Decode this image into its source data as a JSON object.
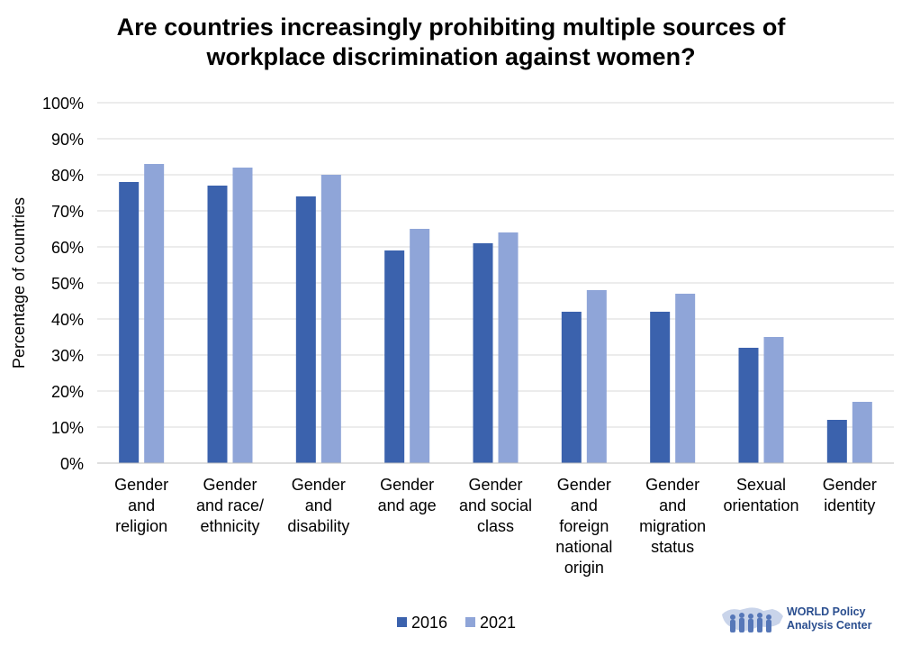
{
  "chart_data": {
    "type": "bar",
    "title": [
      "Are countries increasingly prohibiting multiple sources of",
      "workplace discrimination against women?"
    ],
    "ylabel": "Percentage of countries",
    "ylim": [
      0,
      100
    ],
    "yticks": [
      "0%",
      "10%",
      "20%",
      "30%",
      "40%",
      "50%",
      "60%",
      "70%",
      "80%",
      "90%",
      "100%"
    ],
    "grid": true,
    "legend_position": "bottom",
    "categories": [
      [
        "Gender",
        "and",
        "religion"
      ],
      [
        "Gender",
        "and race/",
        "ethnicity"
      ],
      [
        "Gender",
        "and",
        "disability"
      ],
      [
        "Gender",
        "and age"
      ],
      [
        "Gender",
        "and social",
        "class"
      ],
      [
        "Gender",
        "and",
        "foreign",
        "national",
        "origin"
      ],
      [
        "Gender",
        "and",
        "migration",
        "status"
      ],
      [
        "Sexual",
        "orientation"
      ],
      [
        "Gender",
        "identity"
      ]
    ],
    "series": [
      {
        "name": "2016",
        "color": "#3b62ad",
        "values": [
          78,
          77,
          74,
          59,
          61,
          42,
          42,
          32,
          12
        ]
      },
      {
        "name": "2021",
        "color": "#8fa5d8",
        "values": [
          83,
          82,
          80,
          65,
          64,
          48,
          47,
          35,
          17
        ]
      }
    ]
  },
  "logo": {
    "line1": "WORLD Policy",
    "line2": "Analysis Center",
    "icon": "world-map-people-icon"
  }
}
